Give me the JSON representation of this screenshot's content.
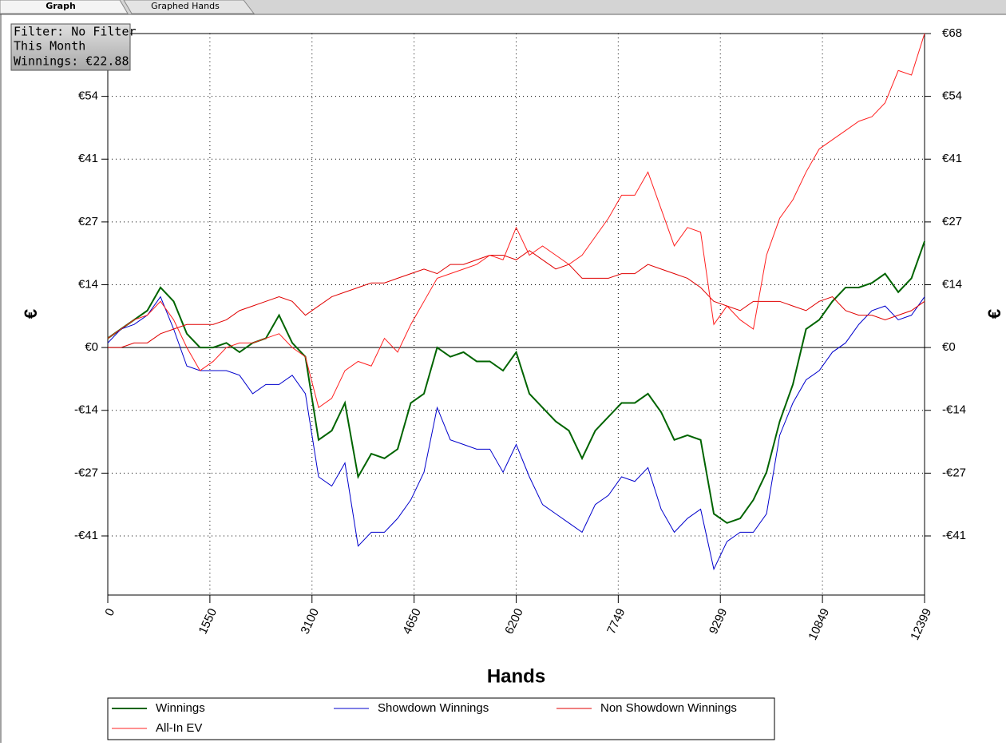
{
  "tabs": [
    "Graph",
    "Graphed Hands"
  ],
  "info": {
    "filter": "Filter: No Filter",
    "period": "This Month",
    "winnings": "Winnings: €22.88"
  },
  "chart_data": {
    "type": "line",
    "x_label": "Hands",
    "y_label": "€",
    "xlim": [
      0,
      12399
    ],
    "xticks": [
      0,
      1550,
      3100,
      4650,
      6200,
      7749,
      9299,
      10849,
      12399
    ],
    "ylim": [
      -53.6,
      68
    ],
    "yticks": [
      {
        "value": -40.8,
        "label": "-€41"
      },
      {
        "value": -27.2,
        "label": "-€27"
      },
      {
        "value": -13.6,
        "label": "-€14"
      },
      {
        "value": 0,
        "label": "€0"
      },
      {
        "value": 13.6,
        "label": "€14"
      },
      {
        "value": 27.2,
        "label": "€27"
      },
      {
        "value": 40.8,
        "label": "€41"
      },
      {
        "value": 54.4,
        "label": "€54"
      },
      {
        "value": 68,
        "label": "€68"
      }
    ],
    "grid": true,
    "legend": "bottom",
    "x": [
      0,
      200,
      400,
      600,
      800,
      1000,
      1200,
      1400,
      1600,
      1800,
      2000,
      2200,
      2400,
      2600,
      2800,
      3000,
      3200,
      3400,
      3600,
      3800,
      4000,
      4200,
      4400,
      4600,
      4800,
      5000,
      5200,
      5400,
      5600,
      5800,
      6000,
      6200,
      6400,
      6600,
      6800,
      7000,
      7200,
      7400,
      7600,
      7800,
      8000,
      8200,
      8400,
      8600,
      8800,
      9000,
      9200,
      9400,
      9600,
      9800,
      10000,
      10200,
      10400,
      10600,
      10800,
      11000,
      11200,
      11400,
      11600,
      11800,
      12000,
      12200,
      12399
    ],
    "series": [
      {
        "name": "Winnings",
        "color": "#006400",
        "values": [
          2,
          4,
          6,
          8,
          13,
          10,
          3,
          0,
          0,
          1,
          -1,
          1,
          2,
          7,
          1,
          -2,
          -20,
          -18,
          -12,
          -28,
          -23,
          -24,
          -22,
          -12,
          -10,
          0,
          -2,
          -1,
          -3,
          -3,
          -5,
          -1,
          -10,
          -13,
          -16,
          -18,
          -24,
          -18,
          -15,
          -12,
          -12,
          -10,
          -14,
          -20,
          -19,
          -20,
          -36,
          -38,
          -37,
          -33,
          -27,
          -16,
          -8,
          4,
          6,
          10,
          13,
          13,
          14,
          16,
          12,
          15,
          23
        ]
      },
      {
        "name": "Showdown Winnings",
        "color": "#0000cc",
        "values": [
          1,
          4,
          5,
          7,
          11,
          4,
          -4,
          -5,
          -5,
          -5,
          -6,
          -10,
          -8,
          -8,
          -6,
          -10,
          -28,
          -30,
          -25,
          -43,
          -40,
          -40,
          -37,
          -33,
          -27,
          -13,
          -20,
          -21,
          -22,
          -22,
          -27,
          -21,
          -28,
          -34,
          -36,
          -38,
          -40,
          -34,
          -32,
          -28,
          -29,
          -26,
          -35,
          -40,
          -37,
          -35,
          -48,
          -42,
          -40,
          -40,
          -36,
          -19,
          -12,
          -7,
          -5,
          -1,
          1,
          5,
          8,
          9,
          6,
          7,
          11
        ]
      },
      {
        "name": "Non Showdown Winnings",
        "color": "#e00000",
        "values": [
          0,
          0,
          1,
          1,
          3,
          4,
          5,
          5,
          5,
          6,
          8,
          9,
          10,
          11,
          10,
          7,
          9,
          11,
          12,
          13,
          14,
          14,
          15,
          16,
          17,
          16,
          18,
          18,
          19,
          20,
          20,
          19,
          21,
          19,
          17,
          18,
          15,
          15,
          15,
          16,
          16,
          18,
          17,
          16,
          15,
          13,
          10,
          9,
          8,
          10,
          10,
          10,
          9,
          8,
          10,
          11,
          8,
          7,
          7,
          6,
          7,
          8,
          10
        ]
      },
      {
        "name": "All-In EV",
        "color": "#ff2020",
        "values": [
          2,
          4,
          6,
          7,
          10,
          6,
          0,
          -5,
          -3,
          0,
          1,
          1,
          2,
          3,
          0,
          -2,
          -13,
          -11,
          -5,
          -3,
          -4,
          2,
          -1,
          5,
          10,
          15,
          16,
          17,
          18,
          20,
          19,
          26,
          20,
          22,
          20,
          18,
          20,
          24,
          28,
          33,
          33,
          38,
          30,
          22,
          26,
          25,
          5,
          9,
          6,
          4,
          20,
          28,
          32,
          38,
          43,
          45,
          47,
          49,
          50,
          53,
          60,
          59,
          68
        ]
      }
    ]
  }
}
